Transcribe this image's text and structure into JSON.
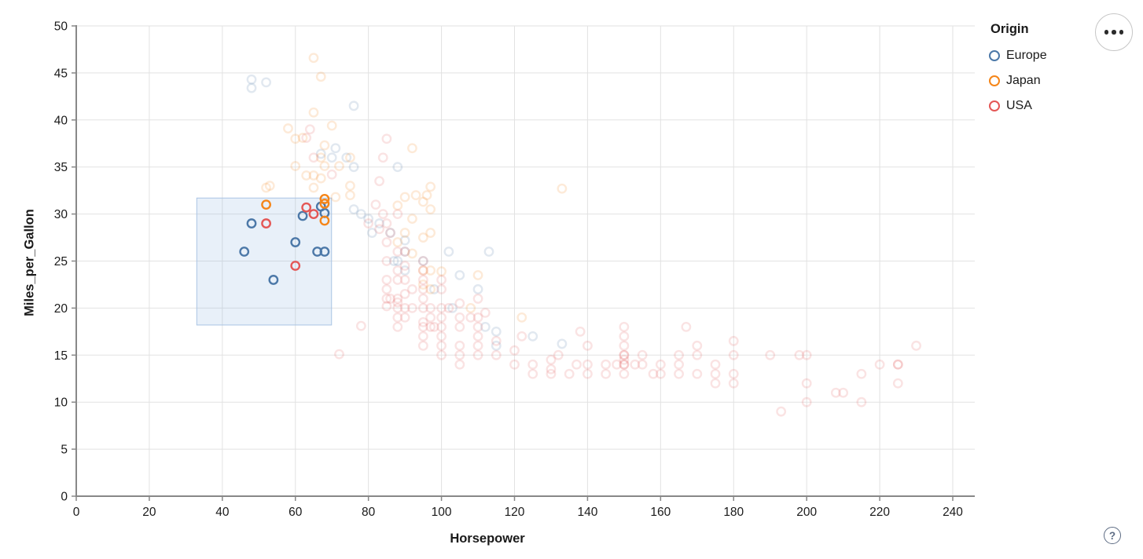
{
  "header": {
    "actions_menu_icon": "ellipsis-icon",
    "help_icon": "question-mark-icon",
    "help_symbol": "?"
  },
  "chart_data": {
    "type": "scatter",
    "title": "",
    "xlabel": "Horsepower",
    "ylabel": "Miles_per_Gallon",
    "xlim": [
      0,
      240
    ],
    "ylim": [
      0,
      50
    ],
    "x_ticks": [
      0,
      20,
      40,
      60,
      80,
      100,
      120,
      140,
      160,
      180,
      200,
      220,
      240
    ],
    "y_ticks": [
      0,
      5,
      10,
      15,
      20,
      25,
      30,
      35,
      40,
      45,
      50
    ],
    "grid": true,
    "legend": {
      "title": "Origin",
      "position": "top-right",
      "entries": [
        {
          "label": "Europe",
          "color": "#4c78a8"
        },
        {
          "label": "Japan",
          "color": "#f58518"
        },
        {
          "label": "USA",
          "color": "#e45756"
        }
      ]
    },
    "brush_selection": {
      "x": [
        33,
        69.9
      ],
      "y": [
        18.2,
        31.7
      ]
    },
    "style": {
      "point_radius": 5.2,
      "point_stroke_width": 2.4,
      "unselected_opacity": 0.17,
      "brush_fill": "rgba(130,170,220,0.18)",
      "brush_stroke": "#aac4e4",
      "grid_color": "#e2e2e2",
      "axis_color": "#888888",
      "label_color": "#1a1a1a"
    },
    "series": [
      {
        "name": "Europe",
        "color": "#4c78a8",
        "selected": [
          [
            46,
            26
          ],
          [
            48,
            29
          ],
          [
            54,
            23
          ],
          [
            60,
            27
          ],
          [
            62,
            29.8
          ],
          [
            66,
            26
          ],
          [
            68,
            26
          ],
          [
            67,
            30.8
          ],
          [
            68,
            30.1
          ]
        ],
        "unselected": [
          [
            48,
            44.3
          ],
          [
            48,
            43.4
          ],
          [
            52,
            44
          ],
          [
            76,
            41.5
          ],
          [
            67,
            36.4
          ],
          [
            71,
            37
          ],
          [
            70,
            36
          ],
          [
            74,
            36
          ],
          [
            76,
            35
          ],
          [
            88,
            35
          ],
          [
            76,
            30.5
          ],
          [
            78,
            30
          ],
          [
            80,
            29.5
          ],
          [
            83,
            29
          ],
          [
            86,
            28
          ],
          [
            90,
            27.2
          ],
          [
            88,
            25
          ],
          [
            87,
            25
          ],
          [
            90,
            24
          ],
          [
            90,
            26
          ],
          [
            95,
            25
          ],
          [
            98,
            22
          ],
          [
            102,
            26
          ],
          [
            105,
            23.5
          ],
          [
            113,
            26
          ],
          [
            110,
            22
          ],
          [
            112,
            18
          ],
          [
            115,
            17.5
          ],
          [
            103,
            20
          ],
          [
            125,
            17
          ],
          [
            133,
            16.2
          ],
          [
            115,
            16
          ],
          [
            81,
            28
          ]
        ]
      },
      {
        "name": "Japan",
        "color": "#f58518",
        "selected": [
          [
            52,
            31
          ],
          [
            68,
            31.6
          ],
          [
            68,
            31.1
          ],
          [
            68,
            29.3
          ]
        ],
        "unselected": [
          [
            65,
            46.6
          ],
          [
            67,
            44.6
          ],
          [
            65,
            40.8
          ],
          [
            70,
            39.4
          ],
          [
            58,
            39.1
          ],
          [
            60,
            38
          ],
          [
            62,
            38.1
          ],
          [
            68,
            37.3
          ],
          [
            67,
            36
          ],
          [
            60,
            35.1
          ],
          [
            68,
            35.1
          ],
          [
            65,
            34.1
          ],
          [
            63,
            34.1
          ],
          [
            67,
            33.8
          ],
          [
            53,
            33
          ],
          [
            65,
            32.8
          ],
          [
            52,
            32.8
          ],
          [
            75,
            36
          ],
          [
            72,
            35.1
          ],
          [
            75,
            33
          ],
          [
            92,
            37
          ],
          [
            97,
            32.9
          ],
          [
            93,
            32
          ],
          [
            96,
            32
          ],
          [
            90,
            31.8
          ],
          [
            75,
            32
          ],
          [
            71,
            31.8
          ],
          [
            88,
            30.9
          ],
          [
            95,
            31.3
          ],
          [
            92,
            29.5
          ],
          [
            97,
            30.5
          ],
          [
            90,
            28
          ],
          [
            97,
            28
          ],
          [
            95,
            27.5
          ],
          [
            88,
            27
          ],
          [
            92,
            25.8
          ],
          [
            95,
            24
          ],
          [
            97,
            24
          ],
          [
            100,
            23.9
          ],
          [
            108,
            20
          ],
          [
            97,
            22
          ],
          [
            95,
            22.5
          ],
          [
            122,
            19
          ],
          [
            133,
            32.7
          ],
          [
            110,
            23.5
          ]
        ]
      },
      {
        "name": "USA",
        "color": "#e45756",
        "selected": [
          [
            52,
            29
          ],
          [
            60,
            24.5
          ],
          [
            63,
            30.7
          ],
          [
            65,
            30
          ]
        ],
        "unselected": [
          [
            63,
            38.1
          ],
          [
            64,
            39
          ],
          [
            65,
            36
          ],
          [
            70,
            34.2
          ],
          [
            85,
            38
          ],
          [
            84,
            36
          ],
          [
            83,
            33.5
          ],
          [
            80,
            29
          ],
          [
            82,
            31
          ],
          [
            84,
            30
          ],
          [
            85,
            29
          ],
          [
            86,
            28
          ],
          [
            83,
            28.4
          ],
          [
            88,
            30
          ],
          [
            85,
            20.2
          ],
          [
            85,
            21
          ],
          [
            85,
            22
          ],
          [
            85,
            23
          ],
          [
            85,
            25
          ],
          [
            85,
            27
          ],
          [
            86,
            21
          ],
          [
            88,
            18
          ],
          [
            88,
            19
          ],
          [
            88,
            20
          ],
          [
            88,
            20.6
          ],
          [
            88,
            21
          ],
          [
            88,
            23
          ],
          [
            88,
            24
          ],
          [
            88,
            26
          ],
          [
            90,
            19
          ],
          [
            90,
            20
          ],
          [
            90,
            21.5
          ],
          [
            90,
            23
          ],
          [
            90,
            24.5
          ],
          [
            90,
            26
          ],
          [
            92,
            20
          ],
          [
            92,
            22
          ],
          [
            95,
            16
          ],
          [
            95,
            17
          ],
          [
            95,
            18
          ],
          [
            95,
            18.5
          ],
          [
            95,
            20
          ],
          [
            95,
            21
          ],
          [
            95,
            22
          ],
          [
            95,
            23
          ],
          [
            95,
            24
          ],
          [
            95,
            25
          ],
          [
            97,
            18
          ],
          [
            97,
            19
          ],
          [
            97,
            20
          ],
          [
            98,
            18
          ],
          [
            100,
            15
          ],
          [
            100,
            16
          ],
          [
            100,
            17
          ],
          [
            100,
            18
          ],
          [
            100,
            19
          ],
          [
            100,
            20
          ],
          [
            100,
            22
          ],
          [
            100,
            23
          ],
          [
            102,
            20
          ],
          [
            105,
            14
          ],
          [
            105,
            15
          ],
          [
            105,
            16
          ],
          [
            105,
            18
          ],
          [
            105,
            19
          ],
          [
            105,
            20.5
          ],
          [
            108,
            19
          ],
          [
            110,
            15
          ],
          [
            110,
            16
          ],
          [
            110,
            17
          ],
          [
            110,
            18
          ],
          [
            110,
            19
          ],
          [
            110,
            21
          ],
          [
            112,
            19.5
          ],
          [
            115,
            15
          ],
          [
            115,
            16.5
          ],
          [
            72,
            15.1
          ],
          [
            78,
            18.1
          ],
          [
            120,
            14
          ],
          [
            120,
            15.5
          ],
          [
            122,
            17
          ],
          [
            125,
            13
          ],
          [
            125,
            14
          ],
          [
            130,
            13
          ],
          [
            130,
            13.5
          ],
          [
            130,
            14.5
          ],
          [
            132,
            15
          ],
          [
            135,
            13
          ],
          [
            137,
            14
          ],
          [
            138,
            17.5
          ],
          [
            140,
            13
          ],
          [
            140,
            14
          ],
          [
            140,
            16
          ],
          [
            145,
            13
          ],
          [
            145,
            14
          ],
          [
            148,
            14
          ],
          [
            150,
            13
          ],
          [
            150,
            14
          ],
          [
            150,
            14
          ],
          [
            150,
            14.5
          ],
          [
            150,
            15
          ],
          [
            150,
            15
          ],
          [
            150,
            16
          ],
          [
            150,
            17
          ],
          [
            150,
            18
          ],
          [
            153,
            14
          ],
          [
            155,
            14
          ],
          [
            155,
            15
          ],
          [
            158,
            13
          ],
          [
            160,
            13
          ],
          [
            160,
            14
          ],
          [
            165,
            13
          ],
          [
            165,
            14
          ],
          [
            165,
            15
          ],
          [
            167,
            18
          ],
          [
            170,
            13
          ],
          [
            170,
            15
          ],
          [
            170,
            16
          ],
          [
            175,
            12
          ],
          [
            175,
            13
          ],
          [
            175,
            14
          ],
          [
            180,
            12
          ],
          [
            180,
            13
          ],
          [
            180,
            15
          ],
          [
            180,
            16.5
          ],
          [
            190,
            15
          ],
          [
            193,
            9
          ],
          [
            198,
            15
          ],
          [
            200,
            10
          ],
          [
            200,
            12
          ],
          [
            200,
            15
          ],
          [
            208,
            11
          ],
          [
            210,
            11
          ],
          [
            215,
            10
          ],
          [
            215,
            13
          ],
          [
            220,
            14
          ],
          [
            225,
            12
          ],
          [
            225,
            14
          ],
          [
            225,
            14
          ],
          [
            230,
            16
          ]
        ]
      }
    ]
  }
}
